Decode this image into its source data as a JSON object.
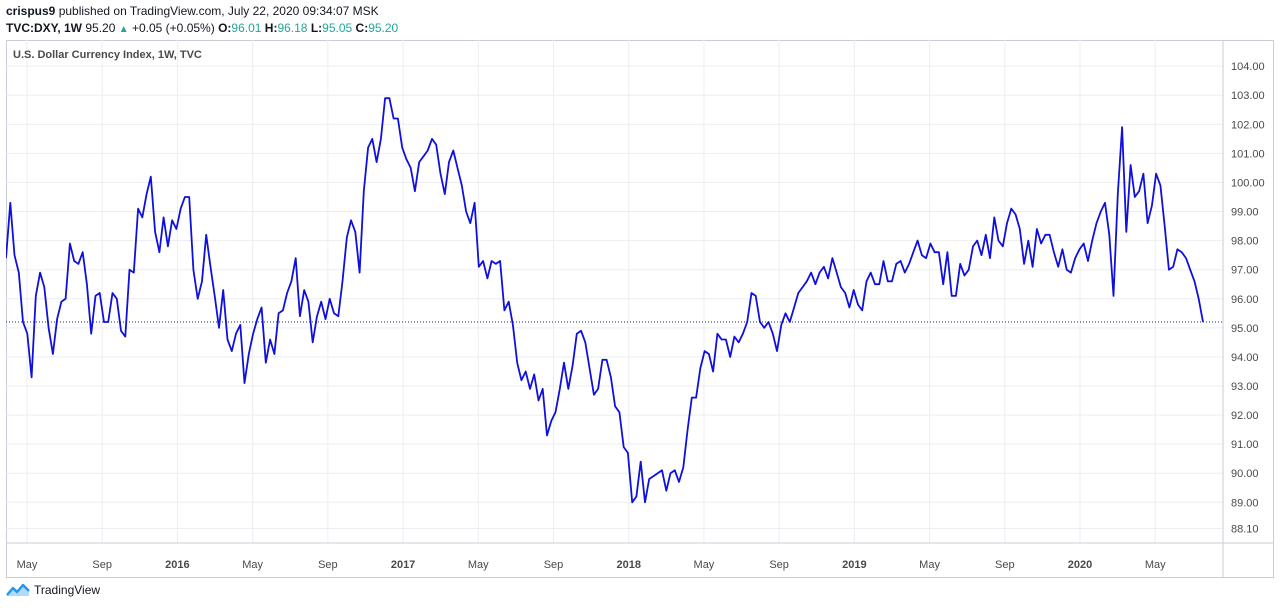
{
  "header": {
    "author": "crispus9",
    "published_text": "published on TradingView.com, July 22, 2020 09:34:07 MSK",
    "symbol": "TVC:DXY, 1W",
    "last": "95.20",
    "change": "+0.05 (+0.05%)",
    "open_label": "O:",
    "open": "96.01",
    "high_label": "H:",
    "high": "96.18",
    "low_label": "L:",
    "low": "95.05",
    "close_label": "C:",
    "close": "95.20"
  },
  "footer": {
    "brand": "TradingView"
  },
  "colors": {
    "line": "#1010dd",
    "grid": "#eceef2",
    "last_price_line": "#1a2a8a",
    "ohlc_value": "#26a69a",
    "axis_text": "#4a4a4a"
  },
  "chart_data": {
    "type": "line",
    "title": "U.S. Dollar Currency Index, 1W, TVC",
    "y_ticks": [
      "88.10",
      "89.00",
      "90.00",
      "91.00",
      "92.00",
      "93.00",
      "94.00",
      "95.00",
      "96.00",
      "97.00",
      "98.00",
      "99.00",
      "100.00",
      "101.00",
      "102.00",
      "103.00",
      "104.00"
    ],
    "ylim": [
      87.6,
      104.9
    ],
    "x_labels": [
      {
        "label": "May",
        "bold": false
      },
      {
        "label": "Sep",
        "bold": false
      },
      {
        "label": "2016",
        "bold": true
      },
      {
        "label": "May",
        "bold": false
      },
      {
        "label": "Sep",
        "bold": false
      },
      {
        "label": "2017",
        "bold": true
      },
      {
        "label": "May",
        "bold": false
      },
      {
        "label": "Sep",
        "bold": false
      },
      {
        "label": "2018",
        "bold": true
      },
      {
        "label": "May",
        "bold": false
      },
      {
        "label": "Sep",
        "bold": false
      },
      {
        "label": "2019",
        "bold": true
      },
      {
        "label": "May",
        "bold": false
      },
      {
        "label": "Sep",
        "bold": false
      },
      {
        "label": "2020",
        "bold": true
      },
      {
        "label": "May",
        "bold": false
      }
    ],
    "grid": true,
    "last_value": 95.2,
    "series": [
      {
        "values": [
          97.4,
          99.3,
          97.5,
          96.9,
          95.2,
          94.8,
          93.3,
          96.1,
          96.9,
          96.4,
          95.0,
          94.1,
          95.3,
          95.9,
          96.0,
          97.9,
          97.3,
          97.2,
          97.6,
          96.5,
          94.8,
          96.1,
          96.2,
          95.2,
          95.2,
          96.2,
          96.0,
          94.9,
          94.7,
          97.0,
          96.9,
          99.1,
          98.8,
          99.6,
          100.2,
          98.3,
          97.6,
          98.8,
          97.8,
          98.7,
          98.4,
          99.1,
          99.5,
          99.5,
          97.0,
          96.0,
          96.6,
          98.2,
          97.1,
          96.1,
          95.0,
          96.3,
          94.6,
          94.2,
          94.8,
          95.1,
          93.1,
          94.1,
          94.8,
          95.3,
          95.7,
          93.8,
          94.6,
          94.1,
          95.5,
          95.6,
          96.2,
          96.6,
          97.4,
          95.4,
          96.3,
          95.9,
          94.5,
          95.4,
          95.9,
          95.3,
          96.0,
          95.5,
          95.4,
          96.6,
          98.1,
          98.7,
          98.3,
          96.9,
          99.7,
          101.2,
          101.5,
          100.7,
          101.5,
          102.9,
          102.9,
          102.2,
          102.2,
          101.2,
          100.8,
          100.5,
          99.7,
          100.7,
          100.9,
          101.1,
          101.5,
          101.3,
          100.3,
          99.6,
          100.7,
          101.1,
          100.5,
          99.9,
          99.0,
          98.6,
          99.3,
          97.1,
          97.3,
          96.7,
          97.3,
          97.2,
          97.3,
          95.6,
          95.9,
          95.1,
          93.8,
          93.2,
          93.5,
          92.9,
          93.4,
          92.5,
          92.9,
          91.3,
          91.8,
          92.1,
          92.9,
          93.8,
          92.9,
          93.7,
          94.8,
          94.9,
          94.5,
          93.6,
          92.7,
          92.9,
          93.9,
          93.9,
          93.3,
          92.3,
          92.1,
          90.9,
          90.7,
          89.0,
          89.2,
          90.4,
          89.0,
          89.8,
          89.9,
          90.0,
          90.1,
          89.4,
          90.0,
          90.1,
          89.7,
          90.2,
          91.5,
          92.6,
          92.6,
          93.6,
          94.2,
          94.1,
          93.5,
          94.8,
          94.6,
          94.6,
          94.0,
          94.7,
          94.5,
          94.8,
          95.2,
          96.2,
          96.1,
          95.2,
          95.0,
          95.2,
          94.8,
          94.2,
          95.1,
          95.5,
          95.2,
          95.7,
          96.2,
          96.4,
          96.6,
          96.9,
          96.5,
          96.9,
          97.1,
          96.7,
          97.4,
          96.9,
          96.4,
          96.2,
          95.7,
          96.3,
          95.8,
          95.6,
          96.6,
          96.9,
          96.5,
          96.5,
          97.3,
          96.6,
          96.6,
          97.2,
          97.3,
          96.9,
          97.2,
          97.6,
          98.0,
          97.5,
          97.4,
          97.9,
          97.6,
          97.6,
          96.5,
          97.6,
          96.1,
          96.1,
          97.2,
          96.8,
          97.0,
          97.8,
          98.0,
          97.5,
          98.2,
          97.4,
          98.8,
          98.0,
          97.8,
          98.6,
          99.1,
          98.9,
          98.4,
          97.2,
          98.0,
          97.1,
          98.4,
          97.9,
          98.2,
          98.2,
          97.6,
          97.1,
          97.7,
          97.0,
          96.9,
          97.4,
          97.7,
          97.9,
          97.3,
          98.0,
          98.6,
          99.0,
          99.3,
          98.2,
          96.1,
          99.6,
          101.9,
          98.3,
          100.6,
          99.5,
          99.7,
          100.3,
          98.6,
          99.2,
          100.3,
          99.9,
          98.5,
          97.0,
          97.1,
          97.7,
          97.6,
          97.4,
          97.0,
          96.6,
          96.0,
          95.2
        ]
      }
    ]
  }
}
